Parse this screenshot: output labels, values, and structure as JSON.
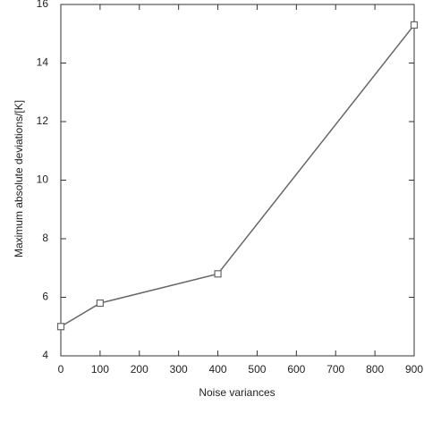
{
  "chart_data": {
    "type": "line",
    "x_label": "Noise variances",
    "y_label": "Maximum absolute deviations/[K]",
    "x": [
      0,
      100,
      400,
      900
    ],
    "series": [
      {
        "color": "#666666",
        "values": [
          5.0,
          5.8,
          6.8,
          15.3
        ]
      }
    ],
    "xlim": [
      0,
      900
    ],
    "xticks": [
      0,
      100,
      200,
      300,
      400,
      500,
      600,
      700,
      800,
      900
    ],
    "ylim": [
      4,
      16
    ],
    "yticks": [
      4,
      6,
      8,
      10,
      12,
      14,
      16
    ],
    "marker": "square",
    "grid": false
  }
}
